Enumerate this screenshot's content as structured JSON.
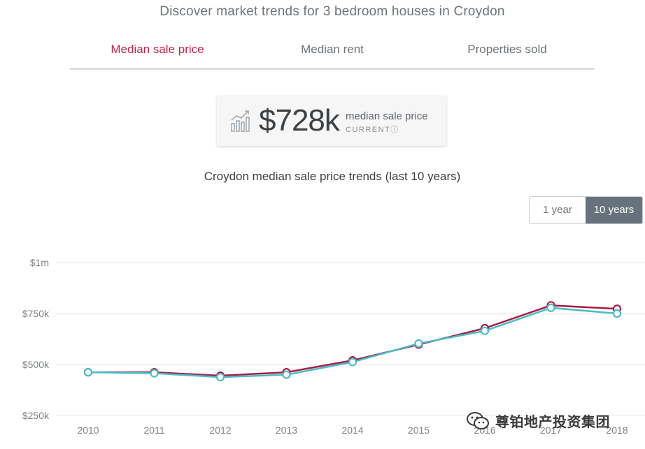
{
  "headline": "Discover market trends for 3 bedroom houses in Croydon",
  "tabs": [
    {
      "label": "Median sale price",
      "active": true
    },
    {
      "label": "Median rent",
      "active": false
    },
    {
      "label": "Properties sold",
      "active": false
    }
  ],
  "stat": {
    "icon": "line-chart-icon",
    "value": "$728k",
    "label": "median sale price",
    "sublabel": "CURRENT",
    "info_icon": "info-icon"
  },
  "range": {
    "one_year": "1 year",
    "ten_years": "10 years",
    "selected": "10 years"
  },
  "watermark": {
    "icon": "wechat-icon",
    "text": "尊铂地产投资集团"
  },
  "colors": {
    "accent": "#c22449",
    "series_primary": "#a61e45",
    "series_secondary": "#4bbcc9",
    "toggle_active": "#67727c"
  },
  "chart_data": {
    "type": "line",
    "title": "Croydon median sale price trends (last 10 years)",
    "xlabel": "",
    "ylabel": "",
    "x": [
      "2010",
      "2011",
      "2012",
      "2013",
      "2014",
      "2015",
      "2016",
      "2017",
      "2018"
    ],
    "y_ticks": [
      {
        "label": "$1m",
        "value": 1000000
      },
      {
        "label": "$750k",
        "value": 750000
      },
      {
        "label": "$500k",
        "value": 500000
      },
      {
        "label": "$250k",
        "value": 250000
      }
    ],
    "ylim": [
      250000,
      1000000
    ],
    "grid": true,
    "series": [
      {
        "values": [
          462000,
          462000,
          445000,
          462000,
          520000,
          598000,
          678000,
          790000,
          773000
        ],
        "color": "#a61e45"
      },
      {
        "values": [
          462000,
          457000,
          438000,
          450000,
          512000,
          603000,
          665000,
          778000,
          750000
        ],
        "color": "#4bbcc9"
      }
    ]
  }
}
